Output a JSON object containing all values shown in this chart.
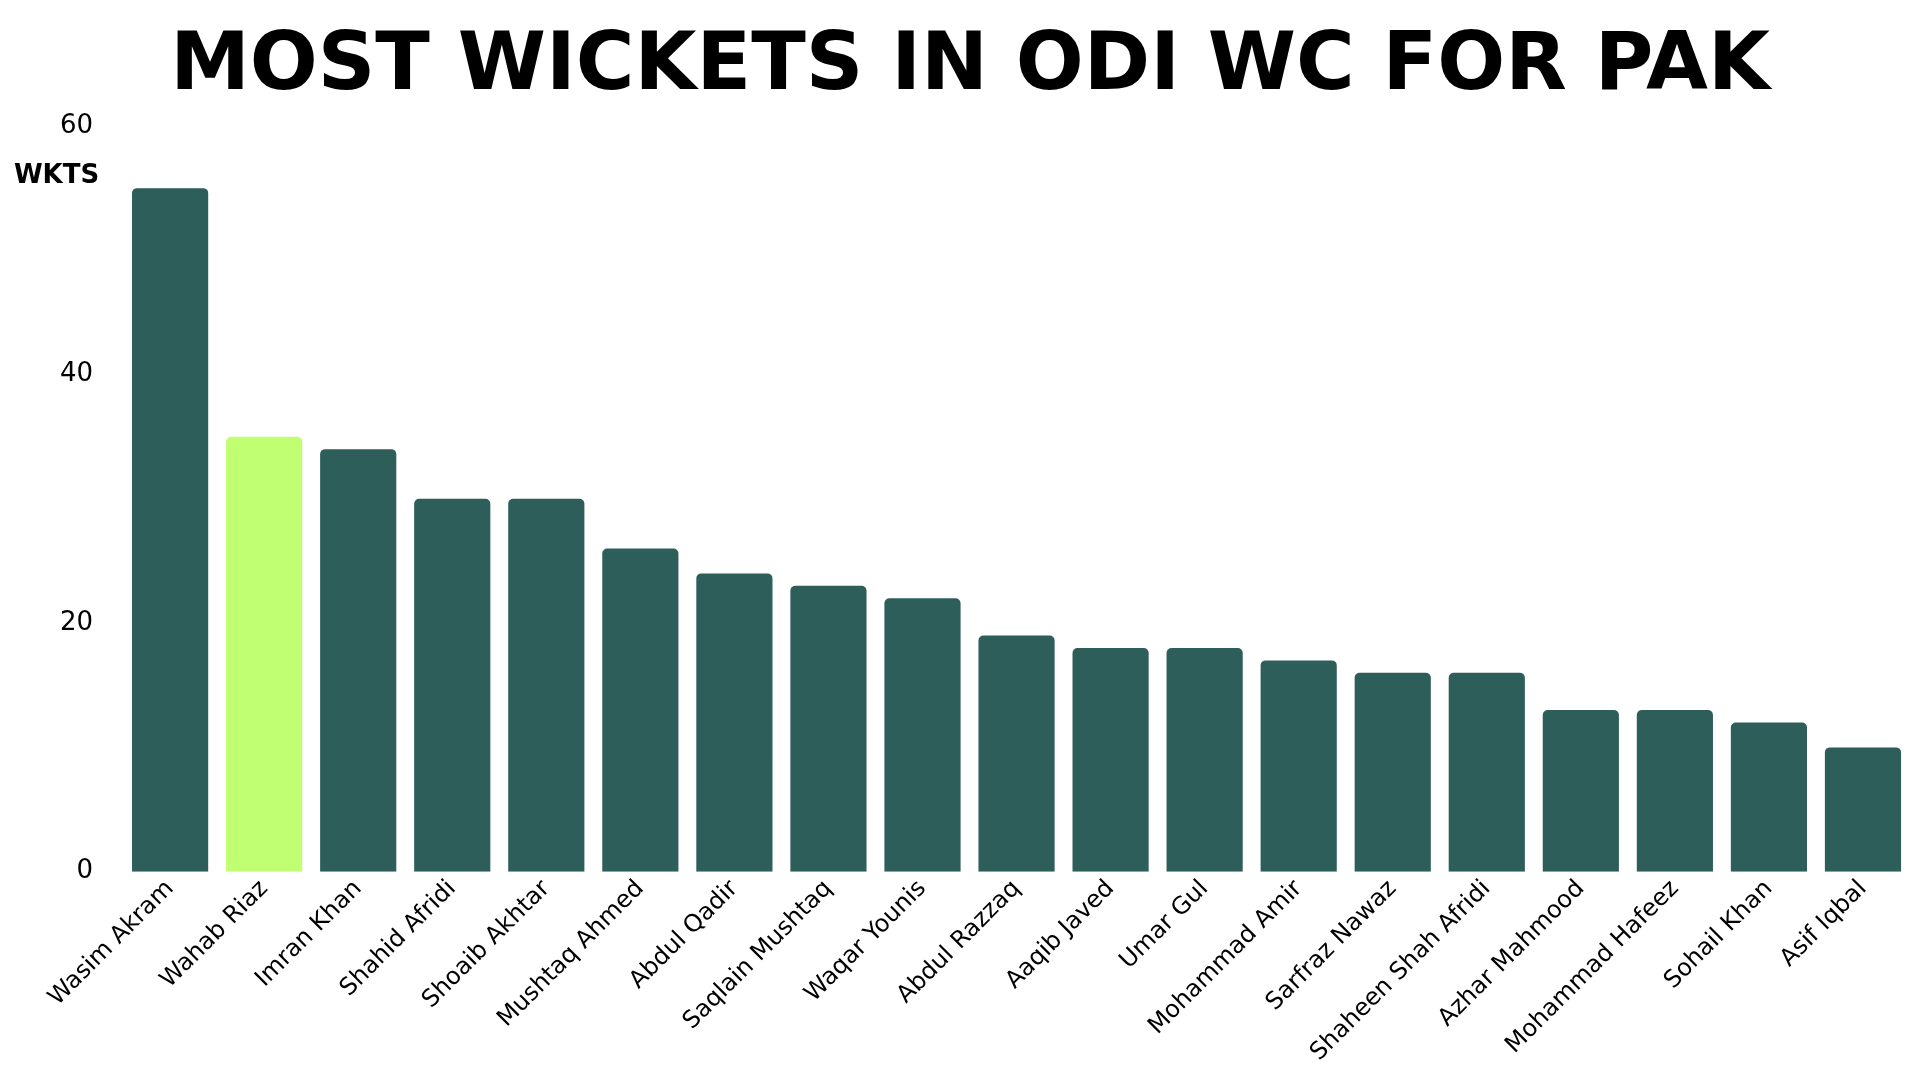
{
  "chart_data": {
    "type": "bar",
    "title": "MOST WICKETS IN ODI WC FOR PAK",
    "ylabel": "WKTS",
    "categories": [
      "Wasim Akram",
      "Wahab Riaz",
      "Imran Khan",
      "Shahid Afridi",
      "Shoaib Akhtar",
      "Mushtaq Ahmed",
      "Abdul Qadir",
      "Saqlain Mushtaq",
      "Waqar Younis",
      "Abdul Razzaq",
      "Aaqib Javed",
      "Umar Gul",
      "Mohammad Amir",
      "Sarfraz Nawaz",
      "Shaheen Shah Afridi",
      "Azhar Mahmood",
      "Mohammad Hafeez",
      "Sohail Khan",
      "Asif Iqbal"
    ],
    "values": [
      55,
      35,
      34,
      30,
      30,
      26,
      24,
      23,
      22,
      19,
      18,
      18,
      17,
      16,
      16,
      13,
      13,
      12,
      10
    ],
    "colors": [
      "#2e5e5a",
      "#c1ff72",
      "#2e5e5a",
      "#2e5e5a",
      "#2e5e5a",
      "#2e5e5a",
      "#2e5e5a",
      "#2e5e5a",
      "#2e5e5a",
      "#2e5e5a",
      "#2e5e5a",
      "#2e5e5a",
      "#2e5e5a",
      "#2e5e5a",
      "#2e5e5a",
      "#2e5e5a",
      "#2e5e5a",
      "#2e5e5a",
      "#2e5e5a"
    ],
    "ylim": [
      0,
      60
    ],
    "yticks": [
      0,
      20,
      40,
      60
    ],
    "grid": false,
    "legend": false
  }
}
